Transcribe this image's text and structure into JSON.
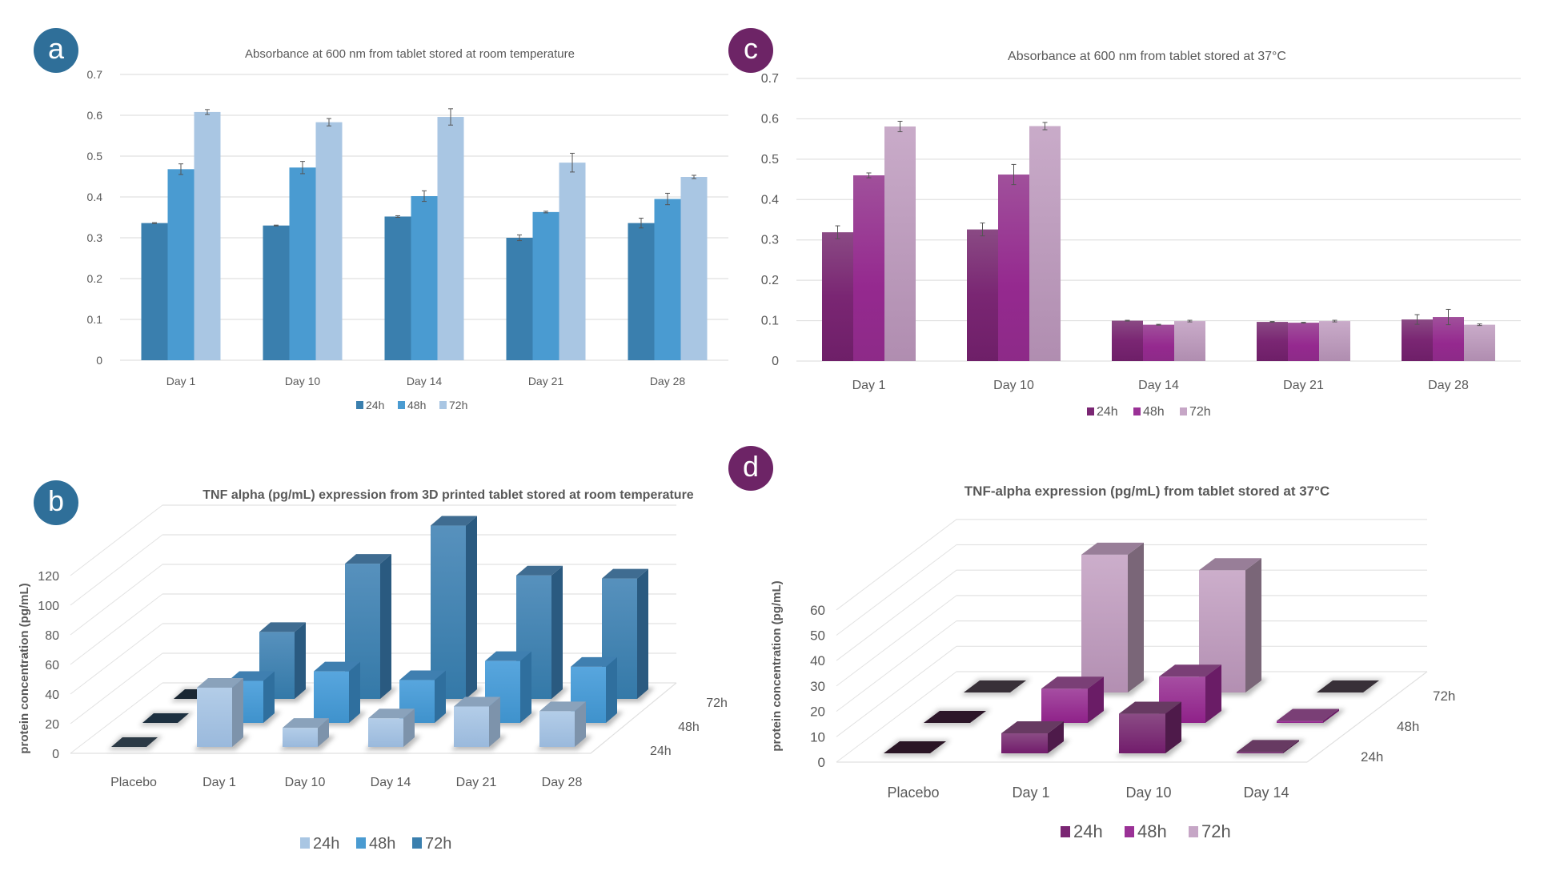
{
  "figure": {
    "panels": [
      "a",
      "b",
      "c",
      "d"
    ],
    "colors": {
      "blue_badge": "#2f6f99",
      "purple_badge": "#6d2466",
      "blue_24h": "#3a7fae",
      "blue_48h": "#4a9bd1",
      "blue_72h": "#a9c6e3",
      "b3d_24h": "#a9c6e3",
      "b3d_48h": "#4a9bd1",
      "b3d_72h": "#3a7fae",
      "purple_24h": "#7a2673",
      "purple_48h": "#9a3196",
      "purple_72h": "#c6a6c6",
      "grid": "#e3e3e3",
      "text": "#595959",
      "placebo_tile": "#2a3440",
      "placebo_tile_d": "#2a1525"
    }
  },
  "chart_data": [
    {
      "panel": "a",
      "type": "bar",
      "title": "Absorbance at 600 nm from tablet stored at room temperature",
      "xlabel": "",
      "ylabel": "",
      "categories": [
        "Day 1",
        "Day 10",
        "Day 14",
        "Day 21",
        "Day 28"
      ],
      "series": [
        {
          "name": "24h",
          "values": [
            0.336,
            0.33,
            0.352,
            0.3,
            0.336
          ],
          "errors": [
            0.001,
            0.001,
            0.002,
            0.007,
            0.012
          ]
        },
        {
          "name": "48h",
          "values": [
            0.468,
            0.472,
            0.402,
            0.363,
            0.395
          ],
          "errors": [
            0.013,
            0.015,
            0.013,
            0.002,
            0.014
          ]
        },
        {
          "name": "72h",
          "values": [
            0.608,
            0.583,
            0.596,
            0.484,
            0.449
          ],
          "errors": [
            0.006,
            0.009,
            0.02,
            0.023,
            0.004
          ]
        }
      ],
      "ylim": [
        0,
        0.7
      ],
      "yticks": [
        "0",
        "0.1",
        "0.2",
        "0.3",
        "0.4",
        "0.5",
        "0.6",
        "0.7"
      ],
      "grid": true,
      "legend": "bottom"
    },
    {
      "panel": "b",
      "type": "bar",
      "style": "3d-column",
      "title": "TNF alpha (pg/mL) expression from 3D printed tablet stored at room temperature",
      "xlabel": "",
      "ylabel": "protein concentration (pg/mL)",
      "categories": [
        "Placebo",
        "Day 1",
        "Day 10",
        "Day 14",
        "Day 21",
        "Day 28"
      ],
      "depth_categories": [
        "24h",
        "48h",
        "72h"
      ],
      "series": [
        {
          "name": "24h",
          "values": [
            0,
            40.0,
            12.9,
            19.3,
            27.3,
            24.1
          ]
        },
        {
          "name": "48h",
          "values": [
            0,
            28.4,
            34.8,
            28.9,
            41.8,
            37.9
          ]
        },
        {
          "name": "72h",
          "values": [
            0,
            45.2,
            91.3,
            117.0,
            83.4,
            81.3
          ]
        }
      ],
      "ylim": [
        0,
        120
      ],
      "yticks": [
        "0",
        "20",
        "40",
        "60",
        "80",
        "100",
        "120"
      ],
      "grid": true,
      "legend": "bottom"
    },
    {
      "panel": "c",
      "type": "bar",
      "title": "Absorbance at 600 nm from tablet stored at 37°C",
      "xlabel": "",
      "ylabel": "",
      "categories": [
        "Day 1",
        "Day 10",
        "Day 14",
        "Day 21",
        "Day 28"
      ],
      "series": [
        {
          "name": "24h",
          "values": [
            0.319,
            0.326,
            0.1,
            0.097,
            0.103
          ],
          "errors": [
            0.016,
            0.016,
            0.001,
            0.001,
            0.012
          ]
        },
        {
          "name": "48h",
          "values": [
            0.46,
            0.462,
            0.09,
            0.095,
            0.109
          ],
          "errors": [
            0.006,
            0.025,
            0.001,
            0.001,
            0.019
          ]
        },
        {
          "name": "72h",
          "values": [
            0.581,
            0.582,
            0.099,
            0.099,
            0.09
          ],
          "errors": [
            0.013,
            0.009,
            0.002,
            0.002,
            0.002
          ]
        }
      ],
      "ylim": [
        0,
        0.7
      ],
      "yticks": [
        "0",
        "0.1",
        "0.2",
        "0.3",
        "0.4",
        "0.5",
        "0.6",
        "0.7"
      ],
      "grid": true,
      "legend": "bottom"
    },
    {
      "panel": "d",
      "type": "bar",
      "style": "3d-column",
      "title": "TNF-alpha expression (pg/mL) from tablet stored at 37°C",
      "xlabel": "",
      "ylabel": "protein concentration (pg/mL)",
      "categories": [
        "Placebo",
        "Day 1",
        "Day 10",
        "Day 14"
      ],
      "depth_categories": [
        "24h",
        "48h",
        "72h"
      ],
      "series": [
        {
          "name": "24h",
          "values": [
            0,
            7.9,
            15.6,
            0.5
          ]
        },
        {
          "name": "48h",
          "values": [
            0,
            13.5,
            18.2,
            0.8
          ]
        },
        {
          "name": "72h",
          "values": [
            0,
            54.3,
            48.2,
            0
          ]
        }
      ],
      "ylim": [
        0,
        60
      ],
      "yticks": [
        "0",
        "10",
        "20",
        "30",
        "40",
        "50",
        "60"
      ],
      "grid": true,
      "legend": "bottom"
    }
  ]
}
